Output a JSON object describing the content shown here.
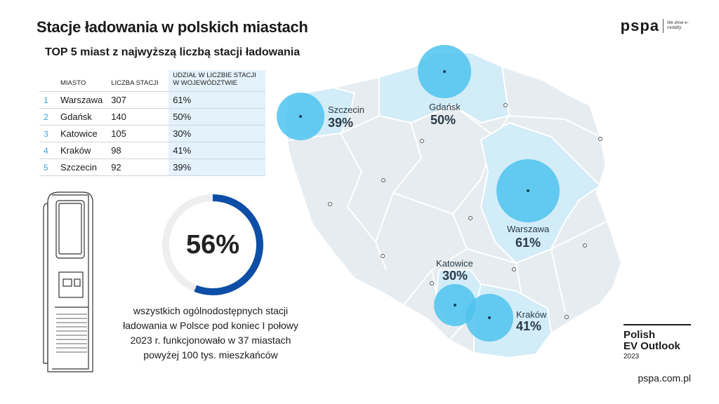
{
  "title": "Stacje ładowania w polskich miastach",
  "subtitle": "TOP 5 miast z najwyższą liczbą stacji ładowania",
  "table": {
    "headers": {
      "city": "MIASTO",
      "count": "LICZBA STACJI",
      "share": "UDZIAŁ W LICZBIE STACJI W WOJEWÓDZTWIE"
    },
    "rows": [
      {
        "idx": "1",
        "city": "Warszawa",
        "count": "307",
        "share": "61%"
      },
      {
        "idx": "2",
        "city": "Gdańsk",
        "count": "140",
        "share": "50%"
      },
      {
        "idx": "3",
        "city": "Katowice",
        "count": "105",
        "share": "30%"
      },
      {
        "idx": "4",
        "city": "Kraków",
        "count": "98",
        "share": "41%"
      },
      {
        "idx": "5",
        "city": "Szczecin",
        "count": "92",
        "share": "39%"
      }
    ]
  },
  "donut": {
    "value_label": "56%",
    "fraction": 0.56,
    "color": "#0d4ea6",
    "track_color": "#eeeeee"
  },
  "caption": "wszystkich ogólnodostępnych stacji ładowania w Polsce pod koniec I połowy 2023 r. funkcjonowało w 37 miastach powyżej 100 tys. mieszkańców",
  "map_labels": {
    "szczecin": {
      "name": "Szczecin",
      "pct": "39%"
    },
    "gdansk": {
      "name": "Gdańsk",
      "pct": "50%"
    },
    "warszawa": {
      "name": "Warszawa",
      "pct": "61%"
    },
    "katowice": {
      "name": "Katowice",
      "pct": "30%"
    },
    "krakow": {
      "name": "Kraków",
      "pct": "41%"
    }
  },
  "colors": {
    "circle": "#4fc3ef",
    "highlight_region": "#d2ecf8",
    "map_base": "#e6ecf0",
    "accent": "#3aa3d8"
  },
  "logo": {
    "text": "pspa",
    "tagline": "We drive e-mobility"
  },
  "outlook": {
    "line1": "Polish",
    "line2": "EV Outlook",
    "year": "2023"
  },
  "site": "pspa.com.pl"
}
